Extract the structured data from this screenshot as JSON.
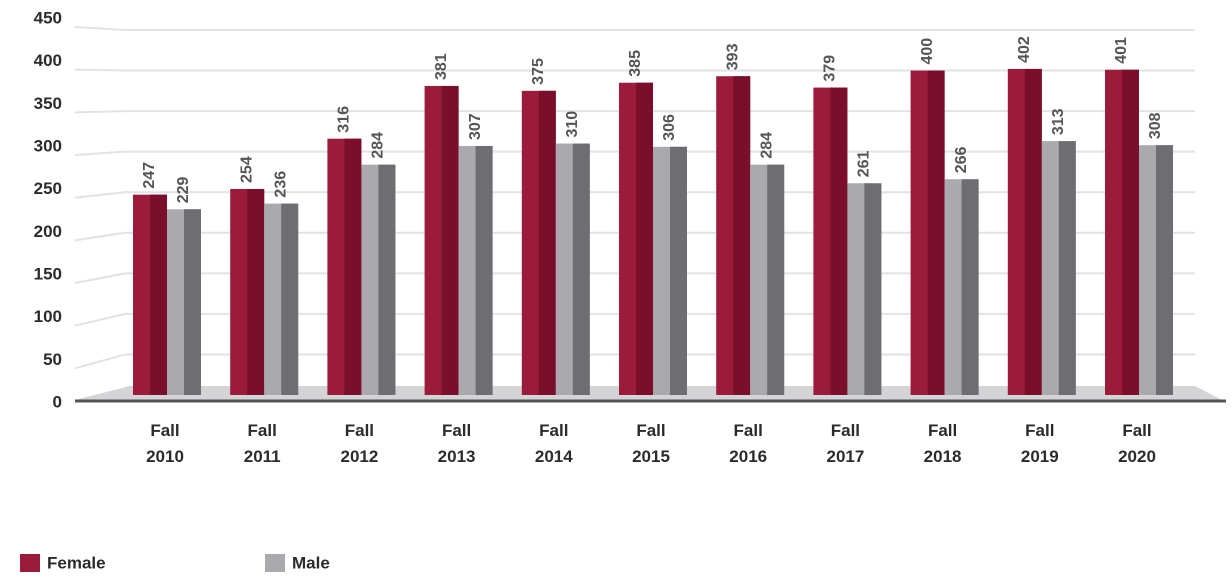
{
  "chart_data": {
    "type": "bar",
    "categories": [
      "Fall 2010",
      "Fall 2011",
      "Fall 2012",
      "Fall 2013",
      "Fall 2014",
      "Fall 2015",
      "Fall 2016",
      "Fall 2017",
      "Fall 2018",
      "Fall 2019",
      "Fall 2020"
    ],
    "series": [
      {
        "name": "Female",
        "color": "#9b1b3a",
        "values": [
          247,
          254,
          316,
          381,
          375,
          385,
          393,
          379,
          400,
          402,
          401
        ]
      },
      {
        "name": "Male",
        "color": "#a9a9ae",
        "values": [
          229,
          236,
          284,
          307,
          310,
          306,
          284,
          261,
          266,
          313,
          308
        ]
      }
    ],
    "ylim": [
      0,
      450
    ],
    "yticks": [
      0,
      50,
      100,
      150,
      200,
      250,
      300,
      350,
      400,
      450
    ],
    "grid": true,
    "legend": "bottom-left"
  }
}
